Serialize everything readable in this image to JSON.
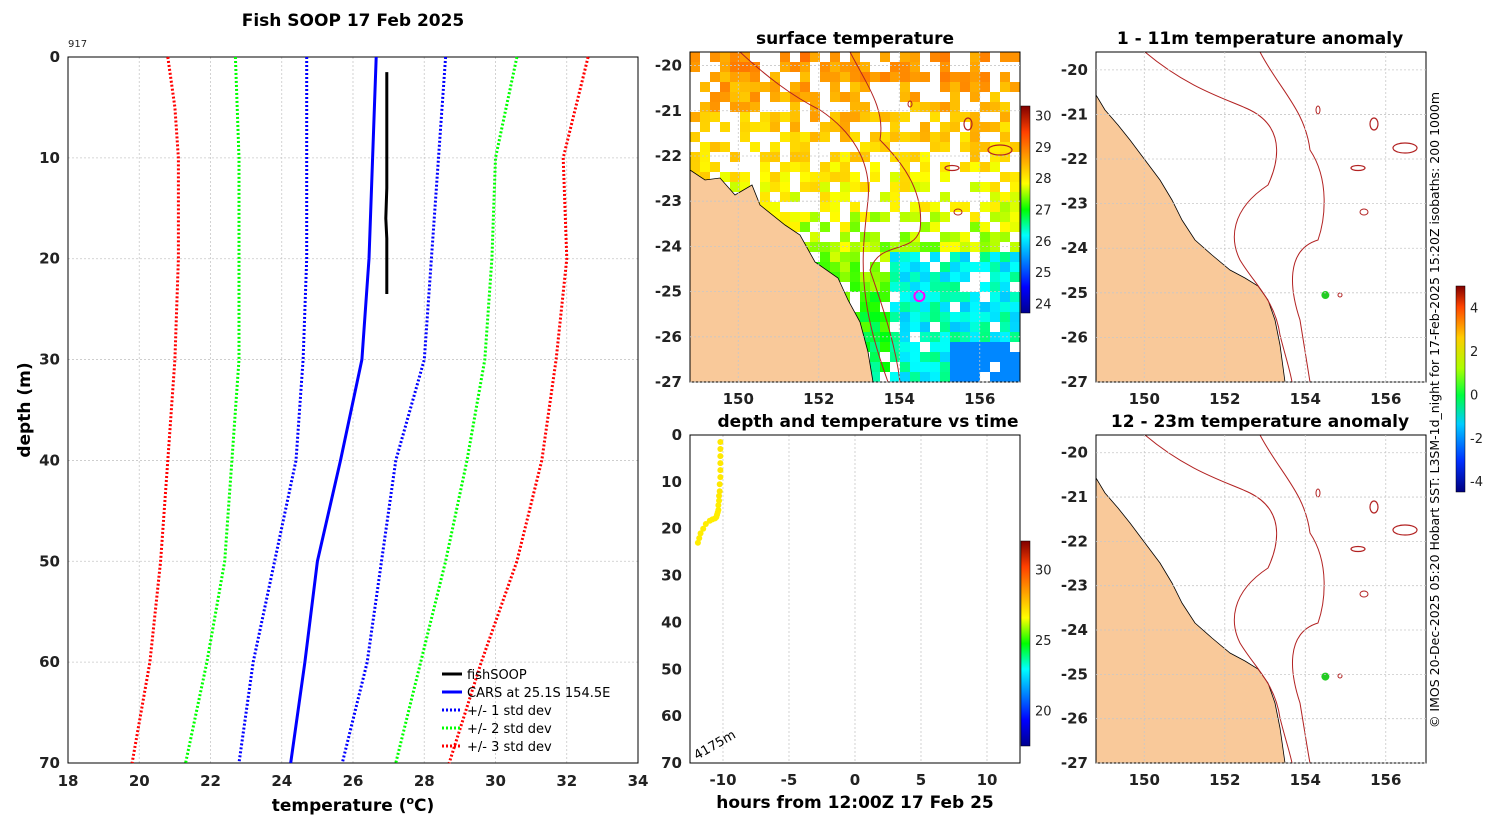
{
  "chart_data": [
    {
      "id": "profile",
      "type": "line",
      "title": "Fish SOOP 17 Feb 2025",
      "tag": "917",
      "xlabel": "temperature (",
      "xlabel_sup": "o",
      "xlabel_end": "C)",
      "ylabel": "depth (m)",
      "xlim": [
        18,
        34
      ],
      "ylim": [
        0,
        70
      ],
      "xticks": [
        18,
        20,
        22,
        24,
        26,
        28,
        30,
        32,
        34
      ],
      "yticks": [
        0,
        10,
        20,
        30,
        40,
        50,
        60,
        70
      ],
      "legend": [
        "fishSOOP",
        "CARS at 25.1S 154.5E",
        "+/- 1 std dev",
        "+/- 2 std dev",
        "+/- 3 std dev"
      ],
      "series": [
        {
          "name": "fishSOOP",
          "color": "#000000",
          "depth": [
            1.5,
            13,
            16,
            18,
            23.5
          ],
          "temp": [
            26.95,
            26.95,
            26.92,
            26.95,
            26.95
          ]
        },
        {
          "name": "CARS mean",
          "color": "#0000ff",
          "depth": [
            0,
            10,
            20,
            30,
            40,
            50,
            60,
            70
          ],
          "temp": [
            26.65,
            26.55,
            26.45,
            26.25,
            25.65,
            25.0,
            24.65,
            24.25
          ]
        },
        {
          "name": "-1 std",
          "color": "#0000ff",
          "depth": [
            0,
            10,
            20,
            30,
            40,
            50,
            60,
            70
          ],
          "temp": [
            24.7,
            24.7,
            24.7,
            24.6,
            24.4,
            23.8,
            23.2,
            22.8
          ]
        },
        {
          "name": "+1 std",
          "color": "#0000ff",
          "depth": [
            0,
            10,
            20,
            30,
            40,
            50,
            60,
            70
          ],
          "temp": [
            28.6,
            28.4,
            28.2,
            28.0,
            27.2,
            26.8,
            26.4,
            25.7
          ]
        },
        {
          "name": "-2 std",
          "color": "#00ff00",
          "depth": [
            0,
            10,
            20,
            30,
            40,
            50,
            60,
            70
          ],
          "temp": [
            22.7,
            22.8,
            22.8,
            22.8,
            22.6,
            22.4,
            21.9,
            21.3
          ]
        },
        {
          "name": "+2 std",
          "color": "#00ff00",
          "depth": [
            0,
            10,
            20,
            30,
            40,
            50,
            60,
            70
          ],
          "temp": [
            30.6,
            30.0,
            29.9,
            29.7,
            29.2,
            28.6,
            27.9,
            27.2
          ]
        },
        {
          "name": "-3 std",
          "color": "#ff0000",
          "depth": [
            0,
            5,
            10,
            20,
            30,
            40,
            50,
            60,
            70
          ],
          "temp": [
            20.8,
            21.0,
            21.1,
            21.1,
            21.0,
            20.8,
            20.6,
            20.3,
            19.8
          ]
        },
        {
          "name": "+3 std",
          "color": "#ff0000",
          "depth": [
            0,
            10,
            20,
            30,
            40,
            50,
            60,
            70
          ],
          "temp": [
            32.6,
            31.9,
            32.0,
            31.7,
            31.3,
            30.6,
            29.6,
            28.7
          ]
        }
      ]
    },
    {
      "id": "sst",
      "type": "heatmap",
      "title": "surface temperature",
      "xticks": [
        "150",
        "152",
        "154",
        "156"
      ],
      "yticks": [
        "-20",
        "-21",
        "-22",
        "-23",
        "-24",
        "-25",
        "-26",
        "-27"
      ],
      "xlim": [
        148.8,
        157.0
      ],
      "ylim": [
        -27,
        -19.7
      ],
      "colorbar_ticks": [
        "30",
        "29",
        "28",
        "27",
        "26",
        "25",
        "24"
      ],
      "colorbar_range": [
        23.7,
        30.3
      ],
      "marker": {
        "lon": 154.5,
        "lat": -25.1
      }
    },
    {
      "id": "timeseries",
      "type": "scatter",
      "title": "depth and temperature vs time",
      "xlabel": "hours from 12:00Z 17 Feb 25",
      "annotation": "4175m",
      "xlim": [
        -12.5,
        12.5
      ],
      "ylim": [
        0,
        70
      ],
      "xticks": [
        "-10",
        "-5",
        "0",
        "5",
        "10"
      ],
      "yticks": [
        "0",
        "10",
        "20",
        "30",
        "40",
        "50",
        "60",
        "70"
      ],
      "colorbar_ticks": [
        "30",
        "25",
        "20"
      ],
      "colorbar_range": [
        17.5,
        32.0
      ],
      "hours": [
        -10.2,
        -10.2,
        -10.2,
        -10.2,
        -10.2,
        -10.2,
        -10.25,
        -10.25,
        -10.3,
        -10.3,
        -10.35,
        -10.35,
        -10.4,
        -10.45,
        -10.5,
        -10.6,
        -10.8,
        -11.0,
        -11.3,
        -11.5,
        -11.7,
        -11.8,
        -11.9
      ],
      "depth": [
        1.5,
        3,
        4.5,
        6,
        7.5,
        9,
        10.5,
        12,
        13,
        14,
        15,
        16,
        16.5,
        17,
        17.5,
        17.8,
        18,
        18.3,
        19,
        20,
        21,
        22,
        23
      ],
      "temp": [
        27.0,
        27.0,
        27.0,
        27.0,
        27.0,
        27.0,
        27.0,
        27.0,
        27.0,
        26.9,
        26.9,
        26.9,
        26.9,
        26.9,
        26.9,
        26.9,
        26.9,
        26.9,
        26.9,
        26.9,
        26.9,
        26.9,
        26.9
      ]
    },
    {
      "id": "anom1",
      "type": "heatmap",
      "title": "1 - 11m temperature anomaly",
      "xticks": [
        "150",
        "152",
        "154",
        "156"
      ],
      "yticks": [
        "-20",
        "-21",
        "-22",
        "-23",
        "-24",
        "-25",
        "-26",
        "-27"
      ],
      "xlim": [
        148.8,
        157.0
      ],
      "ylim": [
        -27,
        -19.6
      ],
      "point": {
        "lon": 154.5,
        "lat": -25.05
      }
    },
    {
      "id": "anom2",
      "type": "heatmap",
      "title": "12 - 23m temperature anomaly",
      "xticks": [
        "150",
        "152",
        "154",
        "156"
      ],
      "yticks": [
        "-20",
        "-21",
        "-22",
        "-23",
        "-24",
        "-25",
        "-26",
        "-27"
      ],
      "xlim": [
        148.8,
        157.0
      ],
      "ylim": [
        -27,
        -19.6
      ],
      "point": {
        "lon": 154.5,
        "lat": -25.05
      }
    },
    {
      "id": "anom_colorbar",
      "type": "heatmap",
      "colorbar_ticks": [
        "4",
        "2",
        "0",
        "-2",
        "-4"
      ],
      "colorbar_range": [
        -4.5,
        5.0
      ]
    }
  ],
  "credit": "© IMOS 20-Dec-2025 05:20 Hobart SST: L3SM-1d_night for 17-Feb-2025 15:20Z isobaths: 200  1000m",
  "colors": {
    "land": "#f9c99a",
    "isobath": "#b22222",
    "ocean": "#ffffff"
  }
}
